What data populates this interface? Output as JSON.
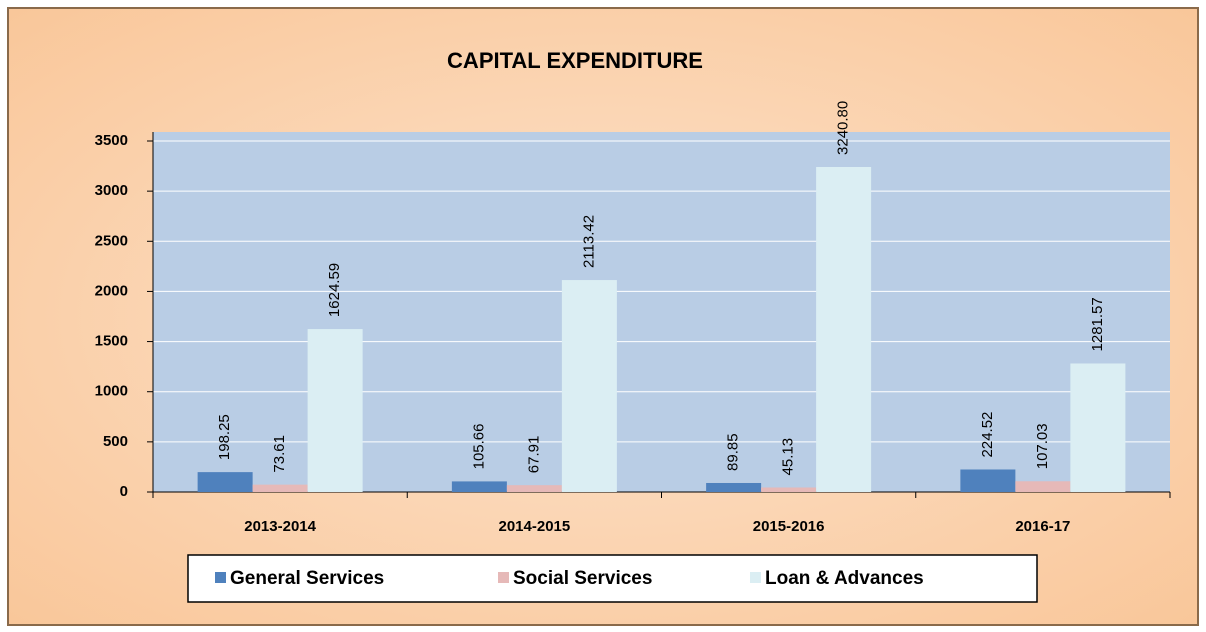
{
  "chart_data": {
    "type": "bar",
    "title": "CAPITAL EXPENDITURE",
    "categories": [
      "2013-2014",
      "2014-2015",
      "2015-2016",
      "2016-17"
    ],
    "series": [
      {
        "name": "General Services",
        "color": "#4f81bd",
        "values": [
          198.25,
          105.66,
          89.85,
          224.52
        ],
        "value_labels": [
          "198.25",
          "105.66",
          "89.85",
          "224.52"
        ]
      },
      {
        "name": "Social Services",
        "color": "#e6b9b8",
        "values": [
          73.61,
          67.91,
          45.13,
          107.03
        ],
        "value_labels": [
          "73.61",
          "67.91",
          "45.13",
          "107.03"
        ]
      },
      {
        "name": "Loan & Advances",
        "color": "#dbeef3",
        "values": [
          1624.59,
          2113.42,
          3240.8,
          1281.57
        ],
        "value_labels": [
          "1624.59",
          "2113.42",
          "3240.80",
          "1281.57"
        ]
      }
    ],
    "ylim": [
      0,
      3500
    ],
    "yticks": [
      0,
      500,
      1000,
      1500,
      2000,
      2500,
      3000,
      3500
    ],
    "grid": true,
    "legend": "bottom"
  }
}
